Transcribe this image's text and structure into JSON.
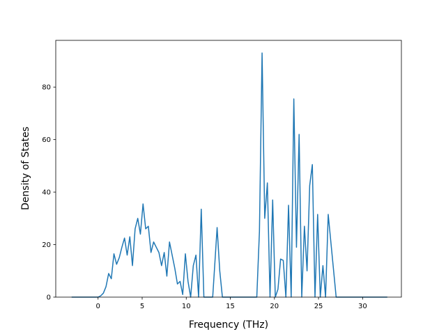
{
  "chart_data": {
    "type": "line",
    "title": "",
    "xlabel": "Frequency (THz)",
    "ylabel": "Density of States",
    "xlim": [
      -4.8,
      34.4
    ],
    "ylim": [
      0,
      97.8
    ],
    "xticks": [
      0,
      5,
      10,
      15,
      20,
      25,
      30
    ],
    "yticks": [
      0,
      20,
      40,
      60,
      80
    ],
    "grid": false,
    "legend": "none",
    "series": [
      {
        "color": "#1f77b4",
        "x": [
          -3.0,
          -1.0,
          0.0,
          0.3,
          0.6,
          0.9,
          1.2,
          1.5,
          1.8,
          2.1,
          2.4,
          2.7,
          3.0,
          3.3,
          3.6,
          3.9,
          4.2,
          4.5,
          4.8,
          5.1,
          5.4,
          5.7,
          6.0,
          6.3,
          6.6,
          6.9,
          7.2,
          7.5,
          7.8,
          8.1,
          8.4,
          8.7,
          9.0,
          9.3,
          9.6,
          9.9,
          10.2,
          10.5,
          10.8,
          11.1,
          11.4,
          11.7,
          12.0,
          12.3,
          12.6,
          13.0,
          13.5,
          13.8,
          14.1,
          14.4,
          15.0,
          16.0,
          17.0,
          18.0,
          18.3,
          18.6,
          18.9,
          19.2,
          19.5,
          19.8,
          20.1,
          20.4,
          20.7,
          21.0,
          21.3,
          21.6,
          21.9,
          22.2,
          22.5,
          22.8,
          23.1,
          23.4,
          23.7,
          24.0,
          24.3,
          24.6,
          24.9,
          25.2,
          25.5,
          25.8,
          26.1,
          27.0,
          30.0,
          32.8
        ],
        "y": [
          0,
          0,
          0,
          0.5,
          1.5,
          4,
          9,
          7,
          16.5,
          12.5,
          15,
          19,
          22.5,
          16,
          23,
          12,
          26,
          30,
          24,
          35.5,
          26,
          27,
          17,
          21,
          19,
          17,
          12,
          17,
          8,
          21,
          16,
          11,
          5,
          6,
          1,
          16.5,
          6,
          0,
          12,
          16,
          0,
          33.5,
          0,
          0,
          0,
          0,
          26.5,
          10,
          0,
          0,
          0,
          0,
          0,
          0,
          25,
          93,
          30,
          43.5,
          0,
          37,
          0,
          3,
          14.5,
          14,
          0,
          35,
          0,
          75.5,
          19,
          62,
          0,
          27,
          10,
          42.5,
          50.5,
          0,
          31.5,
          0,
          12,
          0,
          31.5,
          0,
          0,
          0
        ]
      }
    ]
  }
}
